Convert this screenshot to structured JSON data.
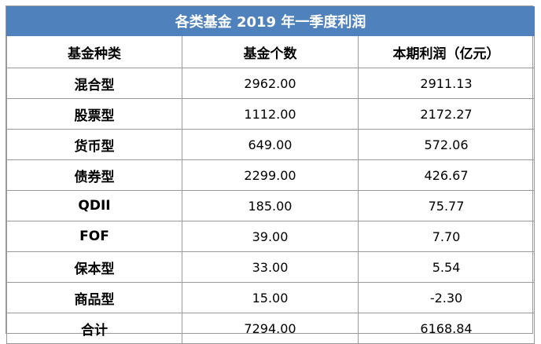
{
  "chart_data": {
    "type": "table",
    "title": "各类基金 2019 年一季度利润",
    "columns": [
      "基金种类",
      "基金个数",
      "本期利润（亿元）"
    ],
    "rows": [
      {
        "name": "混合型",
        "count": "2962.00",
        "profit": "2911.13"
      },
      {
        "name": "股票型",
        "count": "1112.00",
        "profit": "2172.27"
      },
      {
        "name": "货币型",
        "count": "649.00",
        "profit": "572.06"
      },
      {
        "name": "债券型",
        "count": "2299.00",
        "profit": "426.67"
      },
      {
        "name": "QDII",
        "count": "185.00",
        "profit": "75.77"
      },
      {
        "name": "FOF",
        "count": "39.00",
        "profit": "7.70"
      },
      {
        "name": "保本型",
        "count": "33.00",
        "profit": "5.54"
      },
      {
        "name": "商品型",
        "count": "15.00",
        "profit": "-2.30"
      },
      {
        "name": "合计",
        "count": "7294.00",
        "profit": "6168.84"
      }
    ]
  }
}
